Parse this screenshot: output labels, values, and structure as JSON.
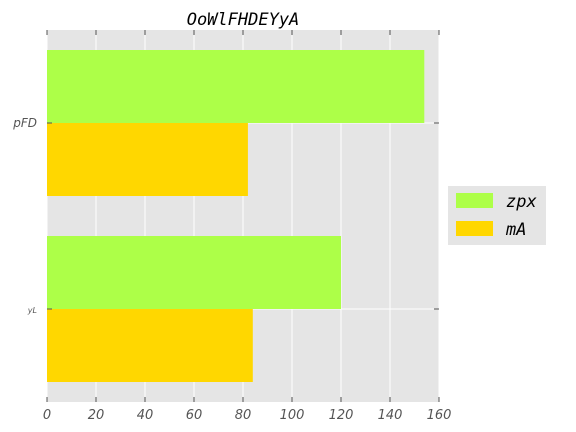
{
  "chart_data": {
    "type": "bar",
    "orientation": "horizontal",
    "title": "OoWlFHDEYyA",
    "categories": [
      "pFD",
      "yL"
    ],
    "series": [
      {
        "name": "zpx",
        "values": [
          154,
          120
        ],
        "color": "#adff48"
      },
      {
        "name": "mA",
        "values": [
          82,
          84
        ],
        "color": "#ffd700"
      }
    ],
    "xlim": [
      0,
      160
    ],
    "xticks": [
      0,
      20,
      40,
      60,
      80,
      100,
      120,
      140,
      160
    ],
    "grid": true,
    "legend_position": "right"
  }
}
